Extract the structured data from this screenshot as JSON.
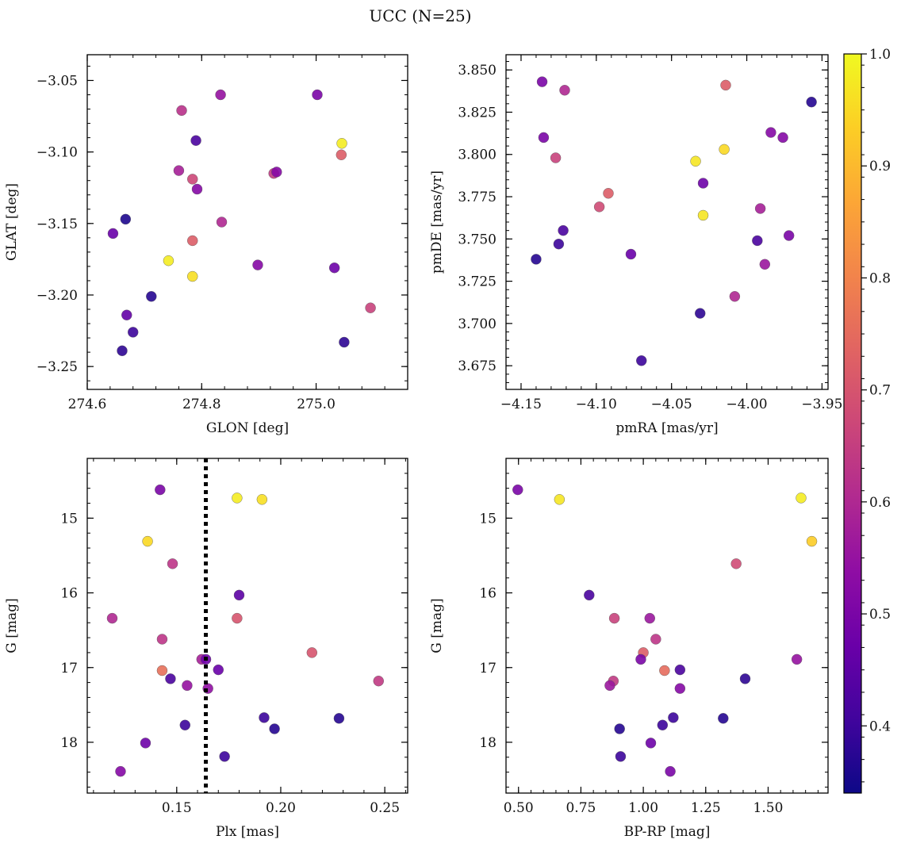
{
  "figure": {
    "title": "UCC (N=25)"
  },
  "colorbar": {
    "colormap": "plasma",
    "min": 0.34,
    "max": 1.0,
    "ticks": [
      0.4,
      0.5,
      0.6,
      0.7,
      0.8,
      0.9,
      1.0
    ],
    "tick_labels": [
      "0.4",
      "0.5",
      "0.6",
      "0.7",
      "0.8",
      "0.9",
      "1.0"
    ]
  },
  "chart_data": [
    {
      "type": "scatter",
      "xlabel": "GLON [deg]",
      "ylabel": "GLAT [deg]",
      "xlim": [
        274.6,
        275.16
      ],
      "ylim": [
        -3.266,
        -3.032
      ],
      "xticks": [
        274.6,
        274.8,
        275.0
      ],
      "xtick_labels": [
        "274.6",
        "274.8",
        "275.0"
      ],
      "yticks": [
        -3.05,
        -3.1,
        -3.15,
        -3.2,
        -3.25
      ],
      "ytick_labels": [
        "−3.05",
        "−3.10",
        "−3.15",
        "−3.20",
        "−3.25"
      ],
      "points": [
        {
          "x": 274.667,
          "y": -3.147,
          "c": 0.36
        },
        {
          "x": 274.645,
          "y": -3.157,
          "c": 0.47
        },
        {
          "x": 274.742,
          "y": -3.176,
          "c": 0.98
        },
        {
          "x": 274.784,
          "y": -3.187,
          "c": 0.96
        },
        {
          "x": 274.784,
          "y": -3.162,
          "c": 0.72
        },
        {
          "x": 274.712,
          "y": -3.201,
          "c": 0.37
        },
        {
          "x": 274.669,
          "y": -3.214,
          "c": 0.46
        },
        {
          "x": 274.68,
          "y": -3.226,
          "c": 0.4
        },
        {
          "x": 274.661,
          "y": -3.239,
          "c": 0.38
        },
        {
          "x": 274.765,
          "y": -3.071,
          "c": 0.62
        },
        {
          "x": 274.79,
          "y": -3.092,
          "c": 0.42
        },
        {
          "x": 274.833,
          "y": -3.06,
          "c": 0.55
        },
        {
          "x": 274.76,
          "y": -3.113,
          "c": 0.58
        },
        {
          "x": 274.784,
          "y": -3.119,
          "c": 0.67
        },
        {
          "x": 274.792,
          "y": -3.126,
          "c": 0.52
        },
        {
          "x": 274.835,
          "y": -3.149,
          "c": 0.6
        },
        {
          "x": 274.898,
          "y": -3.179,
          "c": 0.52
        },
        {
          "x": 274.926,
          "y": -3.115,
          "c": 0.64
        },
        {
          "x": 274.931,
          "y": -3.114,
          "c": 0.52
        },
        {
          "x": 275.002,
          "y": -3.06,
          "c": 0.5
        },
        {
          "x": 275.045,
          "y": -3.094,
          "c": 0.98
        },
        {
          "x": 275.044,
          "y": -3.102,
          "c": 0.72
        },
        {
          "x": 275.032,
          "y": -3.181,
          "c": 0.48
        },
        {
          "x": 275.049,
          "y": -3.233,
          "c": 0.38
        },
        {
          "x": 275.095,
          "y": -3.209,
          "c": 0.66
        }
      ]
    },
    {
      "type": "scatter",
      "xlabel": "pmRA [mas/yr]",
      "ylabel": "pmDE [mas/yr]",
      "xlim": [
        -4.16,
        -3.946
      ],
      "ylim": [
        3.661,
        3.859
      ],
      "xticks": [
        -4.15,
        -4.1,
        -4.05,
        -4.0,
        -3.95
      ],
      "xtick_labels": [
        "−4.15",
        "−4.10",
        "−4.05",
        "−4.00",
        "−3.95"
      ],
      "yticks": [
        3.675,
        3.7,
        3.725,
        3.75,
        3.775,
        3.8,
        3.825,
        3.85
      ],
      "ytick_labels": [
        "3.675",
        "3.700",
        "3.725",
        "3.750",
        "3.775",
        "3.800",
        "3.825",
        "3.850"
      ],
      "points": [
        {
          "x": -4.136,
          "y": 3.843,
          "c": 0.5
        },
        {
          "x": -4.121,
          "y": 3.838,
          "c": 0.6
        },
        {
          "x": -4.135,
          "y": 3.81,
          "c": 0.5
        },
        {
          "x": -4.127,
          "y": 3.798,
          "c": 0.66
        },
        {
          "x": -4.014,
          "y": 3.841,
          "c": 0.72
        },
        {
          "x": -3.957,
          "y": 3.831,
          "c": 0.37
        },
        {
          "x": -3.984,
          "y": 3.813,
          "c": 0.52
        },
        {
          "x": -3.976,
          "y": 3.81,
          "c": 0.52
        },
        {
          "x": -4.015,
          "y": 3.803,
          "c": 0.95
        },
        {
          "x": -4.034,
          "y": 3.796,
          "c": 0.97
        },
        {
          "x": -4.029,
          "y": 3.783,
          "c": 0.48
        },
        {
          "x": -4.092,
          "y": 3.777,
          "c": 0.72
        },
        {
          "x": -4.098,
          "y": 3.769,
          "c": 0.68
        },
        {
          "x": -4.029,
          "y": 3.764,
          "c": 0.97
        },
        {
          "x": -3.991,
          "y": 3.768,
          "c": 0.58
        },
        {
          "x": -4.122,
          "y": 3.755,
          "c": 0.42
        },
        {
          "x": -4.125,
          "y": 3.747,
          "c": 0.4
        },
        {
          "x": -4.14,
          "y": 3.738,
          "c": 0.37
        },
        {
          "x": -3.993,
          "y": 3.749,
          "c": 0.42
        },
        {
          "x": -3.972,
          "y": 3.752,
          "c": 0.5
        },
        {
          "x": -3.988,
          "y": 3.735,
          "c": 0.56
        },
        {
          "x": -4.077,
          "y": 3.741,
          "c": 0.47
        },
        {
          "x": -4.008,
          "y": 3.716,
          "c": 0.6
        },
        {
          "x": -4.031,
          "y": 3.706,
          "c": 0.38
        },
        {
          "x": -4.07,
          "y": 3.678,
          "c": 0.4
        }
      ]
    },
    {
      "type": "scatter",
      "xlabel": "Plx [mas]",
      "ylabel": "G [mag]",
      "xlim": [
        0.107,
        0.261
      ],
      "ylim": [
        18.68,
        14.2
      ],
      "y_inverted": true,
      "vline": {
        "x": 0.164,
        "style": "dotted",
        "color": "#000000"
      },
      "xticks": [
        0.15,
        0.2,
        0.25
      ],
      "xtick_labels": [
        "0.15",
        "0.20",
        "0.25"
      ],
      "yticks": [
        15,
        16,
        17,
        18
      ],
      "ytick_labels": [
        "15",
        "16",
        "17",
        "18"
      ],
      "points": [
        {
          "x": 0.142,
          "y": 14.62,
          "c": 0.5
        },
        {
          "x": 0.179,
          "y": 14.73,
          "c": 0.98
        },
        {
          "x": 0.191,
          "y": 14.75,
          "c": 0.96
        },
        {
          "x": 0.136,
          "y": 15.31,
          "c": 0.95
        },
        {
          "x": 0.148,
          "y": 15.61,
          "c": 0.63
        },
        {
          "x": 0.18,
          "y": 16.03,
          "c": 0.45
        },
        {
          "x": 0.119,
          "y": 16.34,
          "c": 0.6
        },
        {
          "x": 0.179,
          "y": 16.34,
          "c": 0.7
        },
        {
          "x": 0.143,
          "y": 16.62,
          "c": 0.63
        },
        {
          "x": 0.215,
          "y": 16.8,
          "c": 0.7
        },
        {
          "x": 0.162,
          "y": 16.89,
          "c": 0.58
        },
        {
          "x": 0.164,
          "y": 16.89,
          "c": 0.48
        },
        {
          "x": 0.143,
          "y": 17.04,
          "c": 0.76
        },
        {
          "x": 0.17,
          "y": 17.03,
          "c": 0.47
        },
        {
          "x": 0.147,
          "y": 17.15,
          "c": 0.42
        },
        {
          "x": 0.247,
          "y": 17.18,
          "c": 0.64
        },
        {
          "x": 0.155,
          "y": 17.24,
          "c": 0.55
        },
        {
          "x": 0.165,
          "y": 17.28,
          "c": 0.54
        },
        {
          "x": 0.192,
          "y": 17.67,
          "c": 0.4
        },
        {
          "x": 0.228,
          "y": 17.68,
          "c": 0.37
        },
        {
          "x": 0.154,
          "y": 17.77,
          "c": 0.4
        },
        {
          "x": 0.197,
          "y": 17.82,
          "c": 0.37
        },
        {
          "x": 0.135,
          "y": 18.01,
          "c": 0.48
        },
        {
          "x": 0.173,
          "y": 18.19,
          "c": 0.4
        },
        {
          "x": 0.123,
          "y": 18.39,
          "c": 0.52
        }
      ]
    },
    {
      "type": "scatter",
      "xlabel": "BP-RP [mag]",
      "ylabel": "G [mag]",
      "xlim": [
        0.45,
        1.74
      ],
      "ylim": [
        18.68,
        14.2
      ],
      "y_inverted": true,
      "xticks": [
        0.5,
        0.75,
        1.0,
        1.25,
        1.5
      ],
      "xtick_labels": [
        "0.50",
        "0.75",
        "1.00",
        "1.25",
        "1.50"
      ],
      "yticks": [
        15,
        16,
        17,
        18
      ],
      "ytick_labels": [
        "15",
        "16",
        "17",
        "18"
      ],
      "points": [
        {
          "x": 0.497,
          "y": 14.62,
          "c": 0.5
        },
        {
          "x": 0.664,
          "y": 14.75,
          "c": 0.97
        },
        {
          "x": 1.632,
          "y": 14.73,
          "c": 0.98
        },
        {
          "x": 1.675,
          "y": 15.31,
          "c": 0.93
        },
        {
          "x": 1.372,
          "y": 15.61,
          "c": 0.68
        },
        {
          "x": 0.783,
          "y": 16.03,
          "c": 0.42
        },
        {
          "x": 0.884,
          "y": 16.34,
          "c": 0.66
        },
        {
          "x": 1.026,
          "y": 16.34,
          "c": 0.56
        },
        {
          "x": 1.05,
          "y": 16.62,
          "c": 0.63
        },
        {
          "x": 1.0,
          "y": 16.8,
          "c": 0.72
        },
        {
          "x": 0.99,
          "y": 16.89,
          "c": 0.5
        },
        {
          "x": 1.615,
          "y": 16.89,
          "c": 0.55
        },
        {
          "x": 1.085,
          "y": 17.04,
          "c": 0.75
        },
        {
          "x": 1.147,
          "y": 17.03,
          "c": 0.42
        },
        {
          "x": 1.408,
          "y": 17.15,
          "c": 0.38
        },
        {
          "x": 0.88,
          "y": 17.18,
          "c": 0.64
        },
        {
          "x": 0.866,
          "y": 17.24,
          "c": 0.56
        },
        {
          "x": 1.147,
          "y": 17.28,
          "c": 0.52
        },
        {
          "x": 1.12,
          "y": 17.67,
          "c": 0.4
        },
        {
          "x": 1.32,
          "y": 17.68,
          "c": 0.37
        },
        {
          "x": 1.077,
          "y": 17.77,
          "c": 0.4
        },
        {
          "x": 0.905,
          "y": 17.82,
          "c": 0.37
        },
        {
          "x": 1.03,
          "y": 18.01,
          "c": 0.48
        },
        {
          "x": 0.909,
          "y": 18.19,
          "c": 0.4
        },
        {
          "x": 1.108,
          "y": 18.39,
          "c": 0.5
        }
      ]
    }
  ]
}
